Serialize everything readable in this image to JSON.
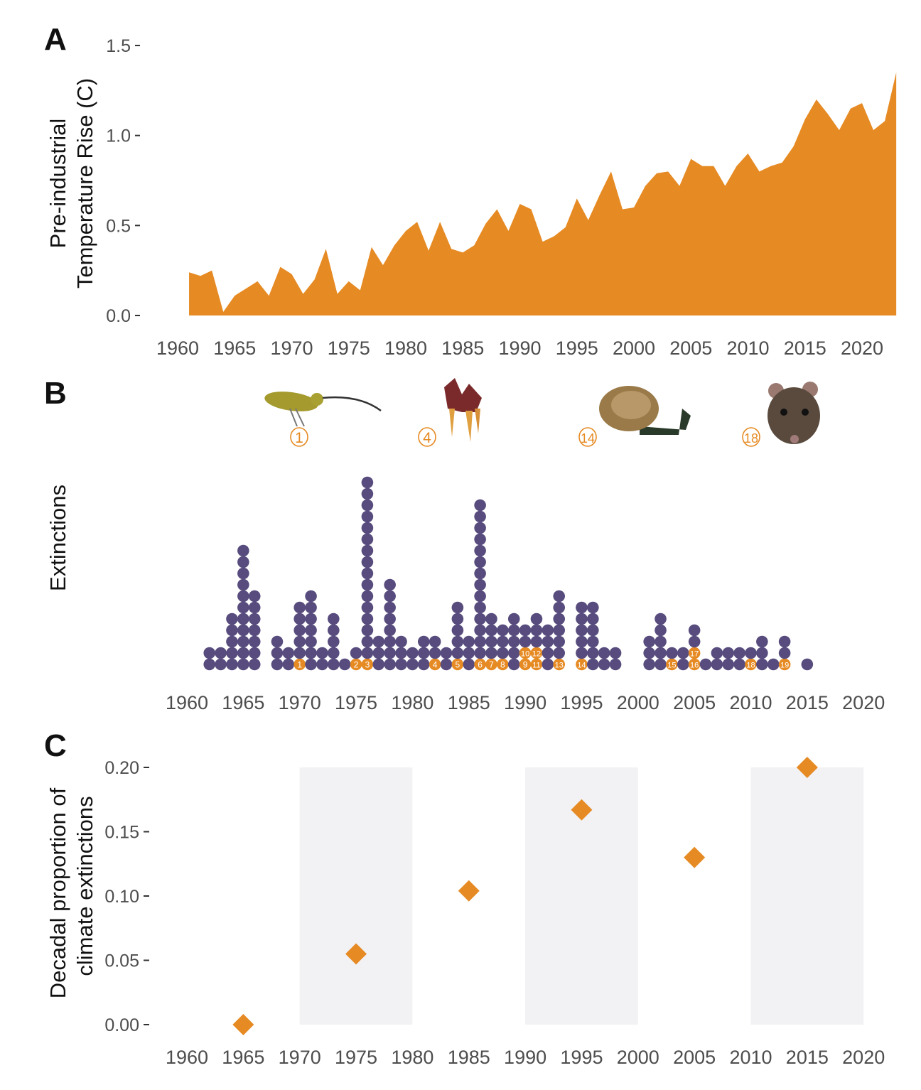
{
  "colors": {
    "orange": "#E68A23",
    "purple": "#574C7D",
    "band": "#F2F2F5",
    "tick": "#4d4d4d"
  },
  "chart_data": [
    {
      "panel": "A",
      "type": "area",
      "xlabel": "",
      "ylabel": [
        "Pre-industrial",
        "Temperature Rise (C)"
      ],
      "xlim": [
        1960,
        2023
      ],
      "ylim": [
        0,
        1.5
      ],
      "xticks": [
        "1960",
        "1965",
        "1970",
        "1975",
        "1980",
        "1985",
        "1990",
        "1995",
        "2000",
        "2005",
        "2010",
        "2015",
        "2020"
      ],
      "yticks": [
        "0.0",
        "0.5",
        "1.0",
        "1.5"
      ],
      "x": [
        1961,
        1962,
        1963,
        1964,
        1965,
        1966,
        1967,
        1968,
        1969,
        1970,
        1971,
        1972,
        1973,
        1974,
        1975,
        1976,
        1977,
        1978,
        1979,
        1980,
        1981,
        1982,
        1983,
        1984,
        1985,
        1986,
        1987,
        1988,
        1989,
        1990,
        1991,
        1992,
        1993,
        1994,
        1995,
        1996,
        1997,
        1998,
        1999,
        2000,
        2001,
        2002,
        2003,
        2004,
        2005,
        2006,
        2007,
        2008,
        2009,
        2010,
        2011,
        2012,
        2013,
        2014,
        2015,
        2016,
        2017,
        2018,
        2019,
        2020,
        2021,
        2022,
        2023
      ],
      "y": [
        0.24,
        0.22,
        0.25,
        0.02,
        0.11,
        0.15,
        0.19,
        0.11,
        0.27,
        0.23,
        0.12,
        0.2,
        0.37,
        0.12,
        0.19,
        0.14,
        0.38,
        0.28,
        0.39,
        0.47,
        0.52,
        0.36,
        0.52,
        0.37,
        0.35,
        0.39,
        0.51,
        0.59,
        0.47,
        0.62,
        0.59,
        0.41,
        0.44,
        0.49,
        0.65,
        0.53,
        0.67,
        0.8,
        0.59,
        0.6,
        0.72,
        0.79,
        0.8,
        0.72,
        0.87,
        0.83,
        0.83,
        0.72,
        0.83,
        0.9,
        0.8,
        0.83,
        0.85,
        0.94,
        1.09,
        1.2,
        1.12,
        1.03,
        1.15,
        1.18,
        1.03,
        1.08,
        1.35
      ]
    },
    {
      "panel": "B",
      "type": "dot",
      "ylabel": "Extinctions",
      "xlim": [
        1960,
        2020
      ],
      "xticks": [
        "1960",
        "1965",
        "1970",
        "1975",
        "1980",
        "1985",
        "1990",
        "1995",
        "2000",
        "2005",
        "2010",
        "2015",
        "2020"
      ],
      "years": [
        1962,
        1963,
        1964,
        1965,
        1966,
        1968,
        1969,
        1970,
        1971,
        1972,
        1973,
        1974,
        1975,
        1976,
        1977,
        1978,
        1979,
        1980,
        1981,
        1982,
        1983,
        1984,
        1985,
        1986,
        1987,
        1988,
        1989,
        1990,
        1991,
        1992,
        1993,
        1995,
        1996,
        1997,
        1998,
        2001,
        2002,
        2003,
        2004,
        2005,
        2006,
        2007,
        2008,
        2009,
        2010,
        2011,
        2012,
        2013,
        2015
      ],
      "counts": [
        2,
        2,
        5,
        11,
        7,
        3,
        2,
        6,
        7,
        2,
        5,
        1,
        2,
        17,
        3,
        8,
        3,
        2,
        3,
        3,
        2,
        6,
        3,
        15,
        5,
        4,
        5,
        4,
        5,
        4,
        7,
        6,
        6,
        2,
        2,
        3,
        5,
        2,
        2,
        4,
        1,
        2,
        2,
        2,
        2,
        3,
        1,
        3,
        1
      ],
      "climate_extinctions": [
        {
          "label": "1",
          "year": 1970,
          "row": 0
        },
        {
          "label": "2",
          "year": 1975,
          "row": 0
        },
        {
          "label": "3",
          "year": 1976,
          "row": 0
        },
        {
          "label": "4",
          "year": 1982,
          "row": 0
        },
        {
          "label": "5",
          "year": 1984,
          "row": 0
        },
        {
          "label": "6",
          "year": 1986,
          "row": 0
        },
        {
          "label": "7",
          "year": 1987,
          "row": 0
        },
        {
          "label": "8",
          "year": 1988,
          "row": 0
        },
        {
          "label": "9",
          "year": 1990,
          "row": 0
        },
        {
          "label": "10",
          "year": 1990,
          "row": 1
        },
        {
          "label": "11",
          "year": 1991,
          "row": 0
        },
        {
          "label": "12",
          "year": 1991,
          "row": 1
        },
        {
          "label": "13",
          "year": 1993,
          "row": 0
        },
        {
          "label": "14",
          "year": 1995,
          "row": 0
        },
        {
          "label": "15",
          "year": 2003,
          "row": 0
        },
        {
          "label": "16",
          "year": 2005,
          "row": 0
        },
        {
          "label": "17",
          "year": 2005,
          "row": 1
        },
        {
          "label": "18",
          "year": 2010,
          "row": 0
        },
        {
          "label": "19",
          "year": 2013,
          "row": 0
        }
      ],
      "species_images": [
        {
          "label": "1",
          "kind": "bird"
        },
        {
          "label": "4",
          "kind": "flower"
        },
        {
          "label": "14",
          "kind": "snail"
        },
        {
          "label": "18",
          "kind": "mouse"
        }
      ]
    },
    {
      "panel": "C",
      "type": "scatter",
      "ylabel": [
        "Decadal proportion of",
        "climate extinctions"
      ],
      "xlim": [
        1960,
        2020
      ],
      "ylim": [
        0,
        0.2
      ],
      "xticks": [
        "1960",
        "1965",
        "1970",
        "1975",
        "1980",
        "1985",
        "1990",
        "1995",
        "2000",
        "2005",
        "2010",
        "2015",
        "2020"
      ],
      "yticks": [
        "0.00",
        "0.05",
        "0.10",
        "0.15",
        "0.20"
      ],
      "shaded_decades": [
        [
          1970,
          1980
        ],
        [
          1990,
          2000
        ],
        [
          2010,
          2020
        ]
      ],
      "x": [
        1965,
        1975,
        1985,
        1995,
        2005,
        2015
      ],
      "y": [
        0.0,
        0.055,
        0.104,
        0.167,
        0.13,
        0.2
      ]
    }
  ],
  "panel_labels": [
    "A",
    "B",
    "C"
  ]
}
